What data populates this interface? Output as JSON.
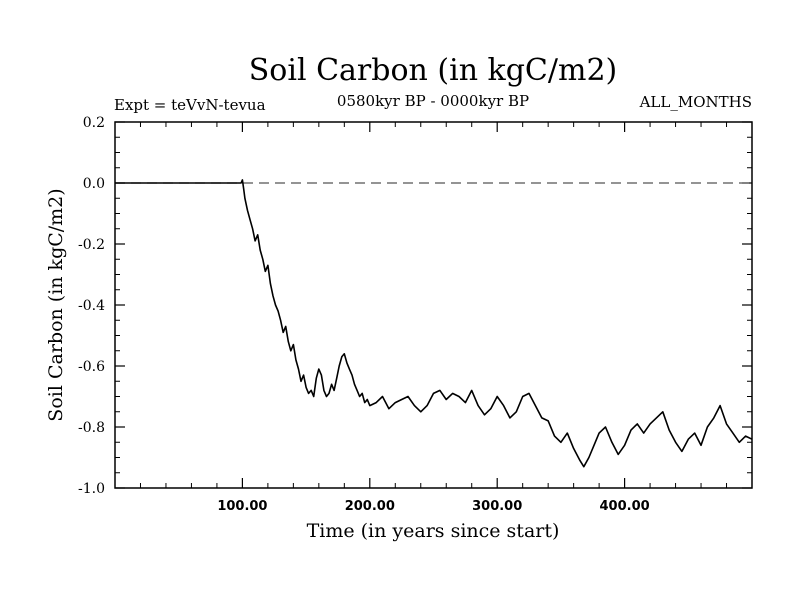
{
  "chart_data": {
    "type": "line",
    "title": "Soil Carbon (in kgC/m2)",
    "subtitle_left": "Expt = teVvN-tevua",
    "subtitle_center": "0580kyr BP - 0000kyr BP",
    "subtitle_right": "ALL_MONTHS",
    "xlabel": "Time (in years since start)",
    "ylabel": "Soil Carbon (in kgC/m2)",
    "xlim": [
      0,
      500
    ],
    "ylim": [
      -1.0,
      0.2
    ],
    "xticks": [
      100,
      200,
      300,
      400
    ],
    "xtick_labels": [
      "100.00",
      "200.00",
      "300.00",
      "400.00"
    ],
    "yticks": [
      0.2,
      0.0,
      -0.2,
      -0.4,
      -0.6,
      -0.8,
      -1.0
    ],
    "ytick_labels": [
      "0.2",
      "0.0",
      "-0.2",
      "-0.4",
      "-0.6",
      "-0.8",
      "-1.0"
    ],
    "zero_line": {
      "y": 0.0,
      "style": "dashed"
    },
    "grid": false,
    "line_color": "#000000",
    "series": [
      {
        "name": "",
        "x": [
          0,
          99,
          100,
          101,
          102,
          104,
          106,
          108,
          110,
          112,
          114,
          116,
          118,
          120,
          122,
          124,
          126,
          128,
          130,
          132,
          134,
          136,
          138,
          140,
          142,
          144,
          146,
          148,
          150,
          152,
          154,
          156,
          158,
          160,
          162,
          164,
          166,
          168,
          170,
          172,
          174,
          176,
          178,
          180,
          182,
          184,
          186,
          188,
          190,
          192,
          194,
          196,
          198,
          200,
          205,
          210,
          215,
          220,
          225,
          230,
          235,
          240,
          245,
          250,
          255,
          260,
          265,
          270,
          275,
          280,
          285,
          290,
          295,
          300,
          305,
          310,
          315,
          320,
          325,
          330,
          335,
          340,
          345,
          350,
          355,
          360,
          365,
          368,
          372,
          376,
          380,
          385,
          390,
          395,
          400,
          405,
          410,
          415,
          420,
          425,
          430,
          435,
          440,
          445,
          450,
          455,
          460,
          465,
          470,
          475,
          480,
          485,
          490,
          495,
          500
        ],
        "y": [
          0.0,
          0.0,
          0.01,
          -0.02,
          -0.05,
          -0.09,
          -0.12,
          -0.15,
          -0.19,
          -0.17,
          -0.22,
          -0.25,
          -0.29,
          -0.27,
          -0.33,
          -0.37,
          -0.4,
          -0.42,
          -0.45,
          -0.49,
          -0.47,
          -0.52,
          -0.55,
          -0.53,
          -0.58,
          -0.61,
          -0.65,
          -0.63,
          -0.67,
          -0.69,
          -0.68,
          -0.7,
          -0.64,
          -0.61,
          -0.63,
          -0.68,
          -0.7,
          -0.69,
          -0.66,
          -0.68,
          -0.64,
          -0.6,
          -0.57,
          -0.56,
          -0.59,
          -0.61,
          -0.63,
          -0.66,
          -0.68,
          -0.7,
          -0.69,
          -0.72,
          -0.71,
          -0.73,
          -0.72,
          -0.7,
          -0.74,
          -0.72,
          -0.71,
          -0.7,
          -0.73,
          -0.75,
          -0.73,
          -0.69,
          -0.68,
          -0.71,
          -0.69,
          -0.7,
          -0.72,
          -0.68,
          -0.73,
          -0.76,
          -0.74,
          -0.7,
          -0.73,
          -0.77,
          -0.75,
          -0.7,
          -0.69,
          -0.73,
          -0.77,
          -0.78,
          -0.83,
          -0.85,
          -0.82,
          -0.87,
          -0.91,
          -0.93,
          -0.9,
          -0.86,
          -0.82,
          -0.8,
          -0.85,
          -0.89,
          -0.86,
          -0.81,
          -0.79,
          -0.82,
          -0.79,
          -0.77,
          -0.75,
          -0.81,
          -0.85,
          -0.88,
          -0.84,
          -0.82,
          -0.86,
          -0.8,
          -0.77,
          -0.73,
          -0.79,
          -0.82,
          -0.85,
          -0.83,
          -0.84
        ]
      }
    ]
  }
}
